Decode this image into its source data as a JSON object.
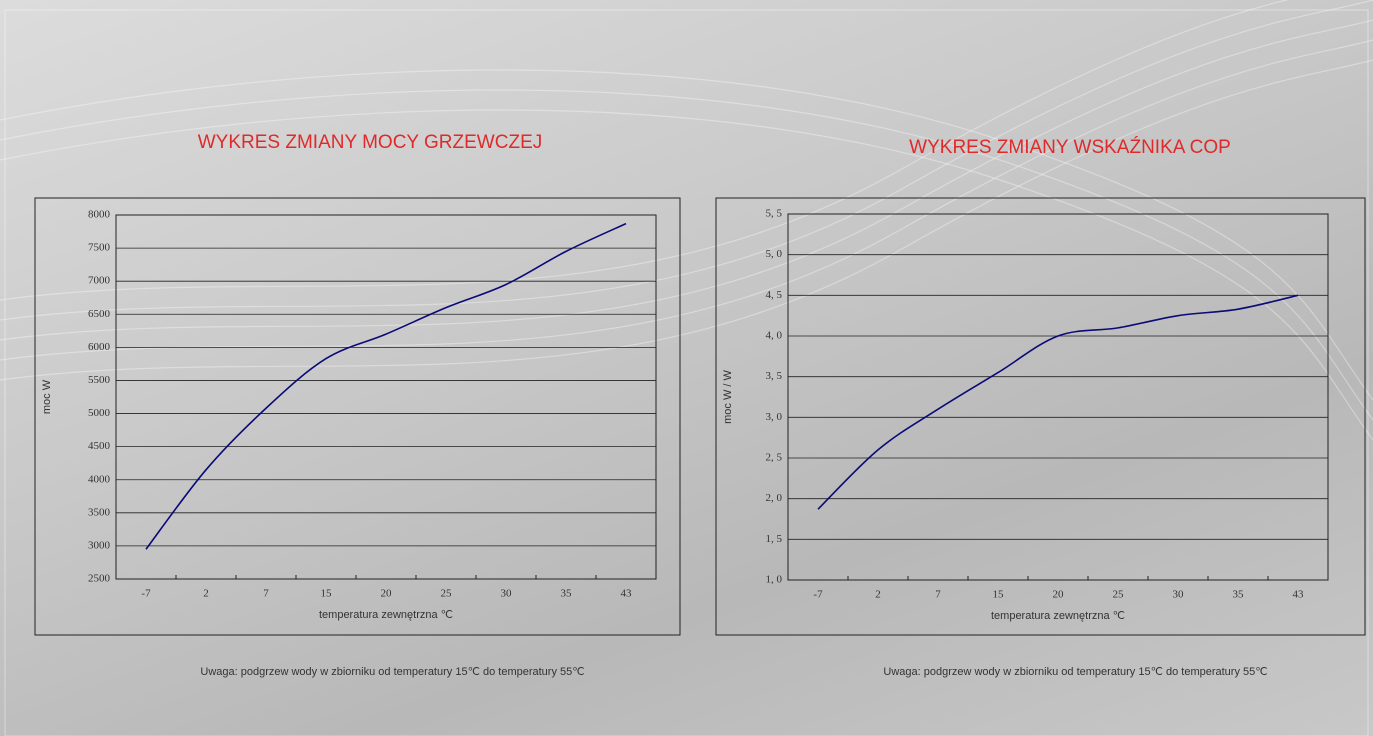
{
  "chart_data": [
    {
      "type": "line",
      "title": "WYKRES ZMIANY MOCY GRZEWCZEJ",
      "x_label": "temperatura zewnętrzna ℃",
      "y_label": "moc W",
      "note": "Uwaga: podgrzew wody w zbiorniku od temperatury 15℃ do temperatury 55℃",
      "categories": [
        "-7",
        "2",
        "7",
        "15",
        "20",
        "25",
        "30",
        "35",
        "43"
      ],
      "series": [
        {
          "color": "#0a0a78",
          "values": [
            2950,
            4150,
            5080,
            5830,
            6200,
            6600,
            6950,
            7450,
            7870
          ]
        }
      ],
      "ylim": [
        2500,
        8000
      ],
      "yticks": [
        2500,
        3000,
        3500,
        4000,
        4500,
        5000,
        5500,
        6000,
        6500,
        7000,
        7500,
        8000
      ],
      "grid": true
    },
    {
      "type": "line",
      "title": "WYKRES ZMIANY WSKAŹNIKA COP",
      "x_label": "temperatura zewnętrzna ℃",
      "y_label": "moc W / W",
      "note": "Uwaga: podgrzew wody w zbiorniku od temperatury 15℃ do temperatury 55℃",
      "categories": [
        "-7",
        "2",
        "7",
        "15",
        "20",
        "25",
        "30",
        "35",
        "43"
      ],
      "series": [
        {
          "color": "#0a0a78",
          "values": [
            1.87,
            2.6,
            3.1,
            3.55,
            4.0,
            4.1,
            4.25,
            4.33,
            4.5
          ]
        }
      ],
      "ylim": [
        1.0,
        5.5
      ],
      "yticks": [
        {
          "value": 1.0,
          "label": "1, 0"
        },
        {
          "value": 1.5,
          "label": "1, 5"
        },
        {
          "value": 2.0,
          "label": "2, 0"
        },
        {
          "value": 2.5,
          "label": "2, 5"
        },
        {
          "value": 3.0,
          "label": "3, 0"
        },
        {
          "value": 3.5,
          "label": "3, 5"
        },
        {
          "value": 4.0,
          "label": "4, 0"
        },
        {
          "value": 4.5,
          "label": "4, 5"
        },
        {
          "value": 5.0,
          "label": "5, 0"
        },
        {
          "value": 5.5,
          "label": "5, 5"
        }
      ],
      "grid": true
    }
  ]
}
